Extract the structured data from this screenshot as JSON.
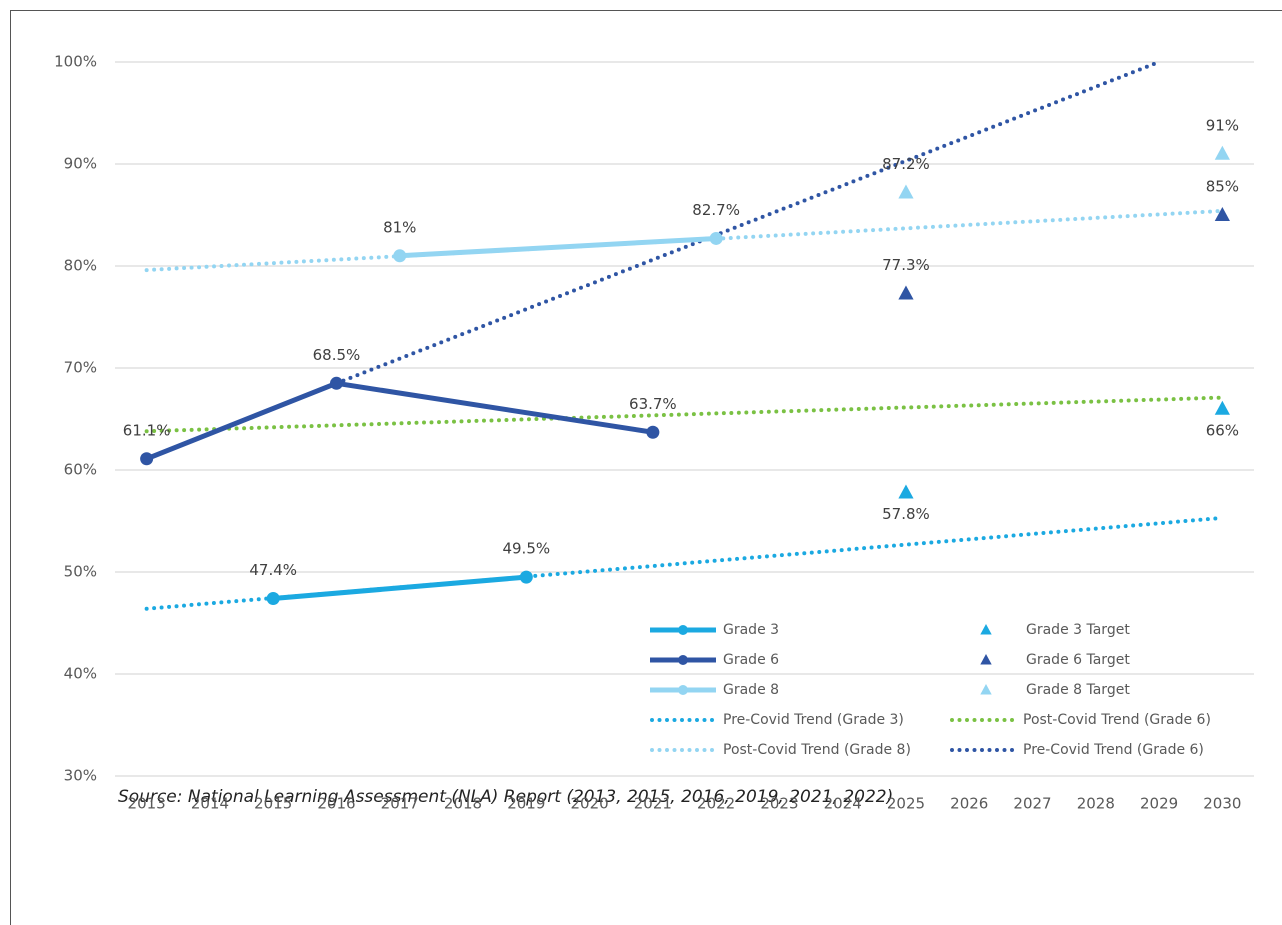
{
  "chart_data": {
    "type": "line",
    "x_label_note": null,
    "xticks": [
      2013,
      2014,
      2015,
      2016,
      2017,
      2018,
      2019,
      2020,
      2021,
      2022,
      2023,
      2024,
      2025,
      2026,
      2027,
      2028,
      2029,
      2030
    ],
    "xlim": [
      2012.5,
      2030.5
    ],
    "ylim": [
      30,
      100
    ],
    "yticks": [
      {
        "value": 30,
        "label": "30%"
      },
      {
        "value": 40,
        "label": "40%"
      },
      {
        "value": 50,
        "label": "50%"
      },
      {
        "value": 60,
        "label": "60%"
      },
      {
        "value": 70,
        "label": "70%"
      },
      {
        "value": 80,
        "label": "80%"
      },
      {
        "value": 90,
        "label": "90%"
      },
      {
        "value": 100,
        "label": "100%"
      }
    ],
    "grid": true,
    "legend": "lower right",
    "series": [
      {
        "name": "Grade 3",
        "color": "#1ba9e1",
        "line_style": "solid",
        "marker": "circle",
        "x": [
          2015,
          2019
        ],
        "values": [
          47.4,
          49.5
        ],
        "value_labels": [
          "47.4%",
          "49.5%"
        ]
      },
      {
        "name": "Grade 3 Target",
        "color": "#1ba9e1",
        "line_style": "none",
        "marker": "triangle",
        "x": [
          2025,
          2030
        ],
        "values": [
          57.8,
          66
        ],
        "value_labels": [
          "57.8%",
          "66%"
        ]
      },
      {
        "name": "Grade 6",
        "color": "#2f55a4",
        "line_style": "solid",
        "marker": "circle",
        "x": [
          2013,
          2016,
          2021
        ],
        "values": [
          61.1,
          68.5,
          63.7
        ],
        "value_labels": [
          "61.1%",
          "68.5%",
          "63.7%"
        ]
      },
      {
        "name": "Grade 6 Target",
        "color": "#2f55a4",
        "line_style": "none",
        "marker": "triangle",
        "x": [
          2025,
          2030
        ],
        "values": [
          77.3,
          85
        ],
        "value_labels": [
          "77.3%",
          "85%"
        ]
      },
      {
        "name": "Grade 8",
        "color": "#93d5f2",
        "line_style": "solid",
        "marker": "circle",
        "x": [
          2017,
          2022
        ],
        "values": [
          81,
          82.7
        ],
        "value_labels": [
          "81%",
          "82.7%"
        ]
      },
      {
        "name": "Grade 8 Target",
        "color": "#93d5f2",
        "line_style": "none",
        "marker": "triangle",
        "x": [
          2025,
          2030
        ],
        "values": [
          87.2,
          91
        ],
        "value_labels": [
          "87.2%",
          "91%"
        ]
      },
      {
        "name": "Pre-Covid Trend (Grade 3)",
        "color": "#1ba9e1",
        "line_style": "dotted",
        "marker": "none",
        "x": [
          2013,
          2030
        ],
        "values": [
          46.4,
          55.3
        ]
      },
      {
        "name": "Post-Covid Trend (Grade 6)",
        "color": "#7ac143",
        "line_style": "dotted",
        "marker": "none",
        "x": [
          2013,
          2030
        ],
        "values": [
          63.8,
          67.1
        ]
      },
      {
        "name": "Post-Covid Trend (Grade 8)",
        "color": "#93d5f2",
        "line_style": "dotted",
        "marker": "none",
        "x": [
          2013,
          2030
        ],
        "values": [
          79.6,
          85.4
        ]
      },
      {
        "name": "Pre-Covid Trend (Grade 6)",
        "color": "#2f55a4",
        "line_style": "dotted",
        "marker": "none",
        "x": [
          2016,
          2029
        ],
        "values": [
          68.5,
          100
        ]
      }
    ],
    "source": "Source: National Learning Assessment (NLA) Report (2013, 2015, 2016, 2019, 2021, 2022)"
  }
}
